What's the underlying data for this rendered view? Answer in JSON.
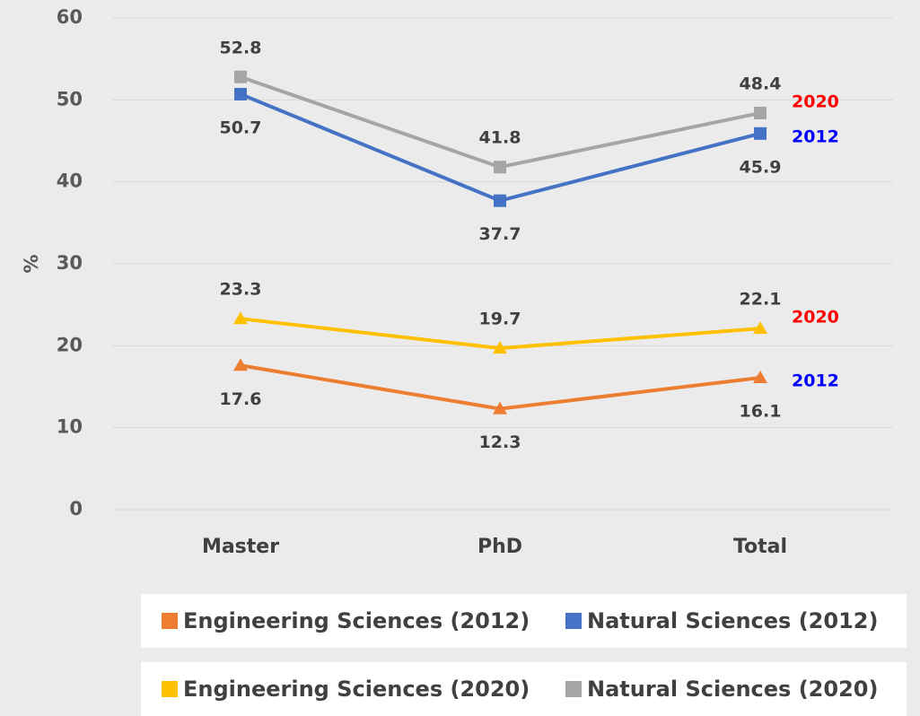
{
  "chart_data": {
    "type": "line",
    "ylabel": "%",
    "categories": [
      "Master",
      "PhD",
      "Total"
    ],
    "ylim": [
      0,
      60
    ],
    "yticks": [
      0,
      10,
      20,
      30,
      40,
      50,
      60
    ],
    "grid": true,
    "legend": "bottom",
    "series": [
      {
        "name": "Engineering Sciences (2012)",
        "color": "#ed7d31",
        "marker": "triangle",
        "label_position": "below",
        "annotation": "2012",
        "annotation_color": "#0000ff",
        "values": [
          17.6,
          12.3,
          16.1
        ]
      },
      {
        "name": "Natural Sciences (2012)",
        "color": "#4472c4",
        "marker": "square",
        "label_position": "below",
        "annotation": "2012",
        "annotation_color": "#0000ff",
        "values": [
          50.7,
          37.7,
          45.9
        ]
      },
      {
        "name": "Engineering Sciences (2020)",
        "color": "#ffc000",
        "marker": "triangle",
        "label_position": "above",
        "annotation": "2020",
        "annotation_color": "#ff0000",
        "values": [
          23.3,
          19.7,
          22.1
        ]
      },
      {
        "name": "Natural Sciences (2020)",
        "color": "#a5a5a5",
        "marker": "square",
        "label_position": "above",
        "annotation": "2020",
        "annotation_color": "#ff0000",
        "values": [
          52.8,
          41.8,
          48.4
        ]
      }
    ]
  }
}
